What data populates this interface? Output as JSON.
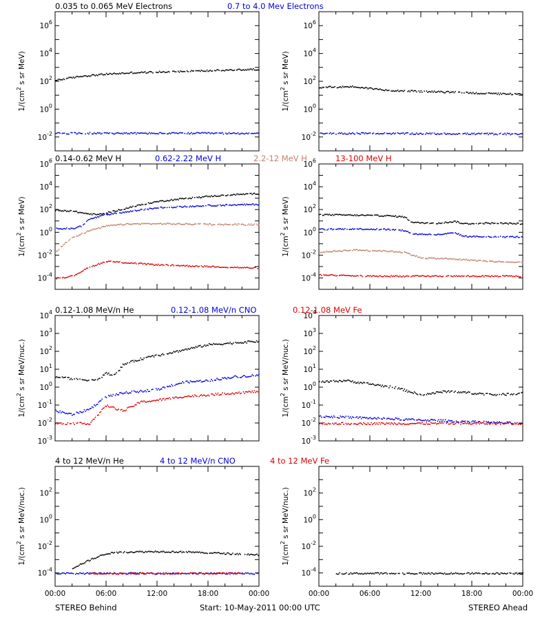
{
  "chart_data": {
    "type": "scatter",
    "x_ticks": [
      "00:00",
      "06:00",
      "12:00",
      "18:00",
      "00:00"
    ],
    "footer": {
      "left": "STEREO Behind",
      "center": "Start: 10-May-2011 00:00 UTC",
      "right": "STEREO Ahead"
    },
    "colors": {
      "black": "#000000",
      "blue": "#0000dd",
      "tan": "#c0826c",
      "red": "#dd0000"
    },
    "rows": [
      {
        "ylabel_prefix": "1/(cm",
        "ylabel_sup": "2",
        "ylabel_suffix": " s sr MeV)",
        "ylim_exp": [
          -3,
          7
        ],
        "ticks": [
          {
            "b": "10",
            "e": "6"
          },
          {
            "b": "10",
            "e": "4"
          },
          {
            "b": "10",
            "e": "2"
          },
          {
            "b": "10",
            "e": "0"
          },
          {
            "b": "10",
            "e": "-2"
          }
        ],
        "legend": [
          {
            "label": "0.035 to 0.065 MeV Electrons",
            "color": "black"
          },
          {
            "label": "0.7 to 4.0 Mev Electrons",
            "color": "blue"
          }
        ],
        "behind": [
          {
            "color": "black",
            "points": [
              [
                0,
                2.1
              ],
              [
                3,
                2.4
              ],
              [
                6,
                2.55
              ],
              [
                9,
                2.65
              ],
              [
                12,
                2.7
              ],
              [
                15,
                2.75
              ],
              [
                18,
                2.8
              ],
              [
                21,
                2.85
              ],
              [
                24,
                2.9
              ]
            ]
          },
          {
            "color": "blue",
            "points": [
              [
                0,
                -1.7
              ],
              [
                24,
                -1.7
              ]
            ]
          }
        ],
        "ahead": [
          {
            "color": "black",
            "points": [
              [
                0,
                1.6
              ],
              [
                4,
                1.65
              ],
              [
                8,
                1.4
              ],
              [
                12,
                1.3
              ],
              [
                16,
                1.25
              ],
              [
                20,
                1.15
              ],
              [
                24,
                1.1
              ]
            ]
          },
          {
            "color": "blue",
            "points": [
              [
                0,
                -1.7
              ],
              [
                24,
                -1.75
              ]
            ]
          }
        ]
      },
      {
        "ylabel_prefix": "1/(cm",
        "ylabel_sup": "2",
        "ylabel_suffix": " s sr MeV)",
        "ylim_exp": [
          -5,
          6
        ],
        "ticks": [
          {
            "b": "10",
            "e": "6"
          },
          {
            "b": "10",
            "e": "4"
          },
          {
            "b": "10",
            "e": "2"
          },
          {
            "b": "10",
            "e": "0"
          },
          {
            "b": "10",
            "e": "-2"
          },
          {
            "b": "10",
            "e": "-4"
          }
        ],
        "legend": [
          {
            "label": "0.14-0.62 MeV H",
            "color": "black"
          },
          {
            "label": "0.62-2.22 MeV H",
            "color": "blue"
          },
          {
            "label": "2.2-12 MeV H",
            "color": "tan"
          },
          {
            "label": "13-100 MeV H",
            "color": "red"
          }
        ],
        "behind": [
          {
            "color": "black",
            "points": [
              [
                0,
                2.0
              ],
              [
                2,
                1.9
              ],
              [
                4,
                1.65
              ],
              [
                5,
                1.6
              ],
              [
                6,
                1.75
              ],
              [
                8,
                2.1
              ],
              [
                10,
                2.45
              ],
              [
                12,
                2.75
              ],
              [
                15,
                3.0
              ],
              [
                18,
                3.2
              ],
              [
                21,
                3.35
              ],
              [
                24,
                3.45
              ]
            ]
          },
          {
            "color": "blue",
            "points": [
              [
                0,
                0.4
              ],
              [
                2,
                0.35
              ],
              [
                3,
                0.6
              ],
              [
                4,
                1.2
              ],
              [
                6,
                1.6
              ],
              [
                8,
                1.8
              ],
              [
                10,
                2.0
              ],
              [
                12,
                2.2
              ],
              [
                15,
                2.3
              ],
              [
                18,
                2.4
              ],
              [
                21,
                2.45
              ],
              [
                24,
                2.5
              ]
            ]
          },
          {
            "color": "tan",
            "points": [
              [
                0,
                -1.7
              ],
              [
                1,
                -1.0
              ],
              [
                2,
                -0.4
              ],
              [
                4,
                0.2
              ],
              [
                6,
                0.6
              ],
              [
                8,
                0.75
              ],
              [
                10,
                0.8
              ],
              [
                12,
                0.8
              ],
              [
                18,
                0.75
              ],
              [
                24,
                0.72
              ]
            ]
          },
          {
            "color": "red",
            "points": [
              [
                0,
                -4.0
              ],
              [
                2,
                -3.8
              ],
              [
                4,
                -3.0
              ],
              [
                6,
                -2.5
              ],
              [
                8,
                -2.6
              ],
              [
                12,
                -2.8
              ],
              [
                16,
                -2.9
              ],
              [
                20,
                -3.0
              ],
              [
                24,
                -3.1
              ]
            ]
          }
        ],
        "ahead": [
          {
            "color": "black",
            "points": [
              [
                0,
                1.6
              ],
              [
                4,
                1.55
              ],
              [
                8,
                1.5
              ],
              [
                10,
                1.4
              ],
              [
                11,
                0.9
              ],
              [
                14,
                0.85
              ],
              [
                16,
                1.0
              ],
              [
                17,
                0.8
              ],
              [
                20,
                0.85
              ],
              [
                24,
                0.8
              ]
            ]
          },
          {
            "color": "blue",
            "points": [
              [
                0,
                0.3
              ],
              [
                4,
                0.35
              ],
              [
                8,
                0.3
              ],
              [
                10,
                0.2
              ],
              [
                11,
                -0.1
              ],
              [
                14,
                -0.15
              ],
              [
                16,
                0.0
              ],
              [
                17,
                -0.3
              ],
              [
                20,
                -0.35
              ],
              [
                24,
                -0.35
              ]
            ]
          },
          {
            "color": "tan",
            "points": [
              [
                0,
                -1.7
              ],
              [
                4,
                -1.5
              ],
              [
                8,
                -1.6
              ],
              [
                10,
                -1.7
              ],
              [
                12,
                -2.2
              ],
              [
                16,
                -2.3
              ],
              [
                20,
                -2.5
              ],
              [
                24,
                -2.6
              ]
            ]
          },
          {
            "color": "red",
            "points": [
              [
                0,
                -3.7
              ],
              [
                6,
                -3.8
              ],
              [
                12,
                -3.8
              ],
              [
                18,
                -3.8
              ],
              [
                24,
                -3.8
              ]
            ]
          }
        ]
      },
      {
        "ylabel_prefix": "1/(cm",
        "ylabel_sup": "2",
        "ylabel_suffix": " s sr MeV/nuc.)",
        "ylim_exp": [
          -3,
          4
        ],
        "ticks": [
          {
            "b": "10",
            "e": "4"
          },
          {
            "b": "10",
            "e": "3"
          },
          {
            "b": "10",
            "e": "2"
          },
          {
            "b": "10",
            "e": "1"
          },
          {
            "b": "10",
            "e": "0"
          },
          {
            "b": "10",
            "e": "-1"
          },
          {
            "b": "10",
            "e": "-2"
          },
          {
            "b": "10",
            "e": "-3"
          }
        ],
        "legend": [
          {
            "label": "0.12-1.08 MeV/n He",
            "color": "black"
          },
          {
            "label": "0.12-1.08 MeV/n CNO",
            "color": "blue"
          },
          {
            "label": "0.12-1.08 MeV Fe",
            "color": "red"
          }
        ],
        "behind": [
          {
            "color": "black",
            "points": [
              [
                0,
                0.6
              ],
              [
                2,
                0.5
              ],
              [
                4,
                0.4
              ],
              [
                5,
                0.5
              ],
              [
                6,
                0.8
              ],
              [
                7,
                0.7
              ],
              [
                8,
                1.3
              ],
              [
                10,
                1.6
              ],
              [
                12,
                1.8
              ],
              [
                14,
                2.0
              ],
              [
                16,
                2.2
              ],
              [
                18,
                2.4
              ],
              [
                21,
                2.5
              ],
              [
                24,
                2.6
              ]
            ]
          },
          {
            "color": "blue",
            "points": [
              [
                0,
                -1.3
              ],
              [
                2,
                -1.5
              ],
              [
                4,
                -1.2
              ],
              [
                6,
                -0.5
              ],
              [
                8,
                -0.3
              ],
              [
                10,
                -0.2
              ],
              [
                12,
                -0.1
              ],
              [
                15,
                0.3
              ],
              [
                18,
                0.4
              ],
              [
                21,
                0.6
              ],
              [
                24,
                0.7
              ]
            ]
          },
          {
            "color": "red",
            "points": [
              [
                0,
                -2.0
              ],
              [
                4,
                -2.0
              ],
              [
                6,
                -1.0
              ],
              [
                8,
                -1.3
              ],
              [
                10,
                -0.8
              ],
              [
                12,
                -0.7
              ],
              [
                15,
                -0.5
              ],
              [
                18,
                -0.4
              ],
              [
                21,
                -0.3
              ],
              [
                24,
                -0.2
              ]
            ]
          }
        ],
        "ahead": [
          {
            "color": "black",
            "points": [
              [
                0,
                0.3
              ],
              [
                3,
                0.4
              ],
              [
                6,
                0.2
              ],
              [
                9,
                0.0
              ],
              [
                12,
                -0.4
              ],
              [
                15,
                -0.2
              ],
              [
                18,
                -0.3
              ],
              [
                21,
                -0.4
              ],
              [
                24,
                -0.3
              ]
            ]
          },
          {
            "color": "blue",
            "points": [
              [
                0,
                -1.6
              ],
              [
                6,
                -1.7
              ],
              [
                12,
                -1.8
              ],
              [
                18,
                -1.9
              ],
              [
                24,
                -2.0
              ]
            ]
          },
          {
            "color": "red",
            "points": [
              [
                0,
                -2.0
              ],
              [
                24,
                -2.0
              ]
            ]
          }
        ]
      },
      {
        "ylabel_prefix": "1/(cm",
        "ylabel_sup": "2",
        "ylabel_suffix": " s sr MeV/nuc.)",
        "ylim_exp": [
          -5,
          4
        ],
        "ticks": [
          {
            "b": "10",
            "e": "2"
          },
          {
            "b": "10",
            "e": "0"
          },
          {
            "b": "10",
            "e": "-2"
          },
          {
            "b": "10",
            "e": "-4"
          }
        ],
        "legend": [
          {
            "label": "4 to 12 MeV/n He",
            "color": "black"
          },
          {
            "label": "4 to 12 MeV/n CNO",
            "color": "blue"
          },
          {
            "label": "4 to 12 MeV Fe",
            "color": "red"
          }
        ],
        "behind": [
          {
            "color": "black",
            "points": [
              [
                2,
                -3.6
              ],
              [
                4,
                -3.0
              ],
              [
                6,
                -2.5
              ],
              [
                8,
                -2.4
              ],
              [
                12,
                -2.35
              ],
              [
                16,
                -2.4
              ],
              [
                20,
                -2.5
              ],
              [
                24,
                -2.6
              ]
            ]
          },
          {
            "color": "blue",
            "points": [
              [
                0,
                -4.0
              ],
              [
                6,
                -4.0
              ],
              [
                12,
                -4.0
              ],
              [
                18,
                -4.0
              ],
              [
                24,
                -4.0
              ]
            ]
          },
          {
            "color": "red",
            "points": [
              [
                4,
                -4.0
              ],
              [
                10,
                -4.0
              ],
              [
                16,
                -4.0
              ],
              [
                22,
                -4.0
              ]
            ]
          }
        ],
        "ahead": [
          {
            "color": "black",
            "points": [
              [
                2,
                -4.0
              ],
              [
                8,
                -4.0
              ],
              [
                14,
                -4.0
              ],
              [
                20,
                -4.0
              ],
              [
                24,
                -4.0
              ]
            ]
          }
        ]
      }
    ]
  }
}
